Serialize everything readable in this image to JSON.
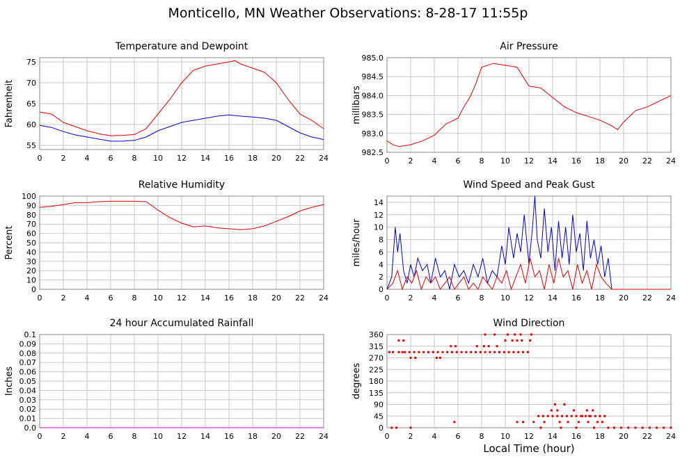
{
  "title": "Monticello, MN Weather Observations: 8-28-17 11:55p",
  "xlabel": "Local Time (hour)",
  "colors": {
    "red": "#e00000",
    "blue": "#0000d0",
    "magenta": "#cc00cc"
  },
  "chart_data": [
    {
      "type": "line",
      "title": "Temperature and Dewpoint",
      "ylabel": "Fahrenheit",
      "xlim": [
        0,
        24
      ],
      "ylim": [
        54,
        76
      ],
      "xticks": [
        "0",
        "2",
        "4",
        "6",
        "8",
        "10",
        "12",
        "14",
        "16",
        "18",
        "20",
        "22",
        "24"
      ],
      "yticks": [
        "55",
        "60",
        "65",
        "70",
        "75"
      ],
      "series": [
        {
          "color": "red",
          "x": [
            0,
            1,
            2,
            3,
            4,
            5,
            6,
            7,
            8,
            9,
            10,
            11,
            12,
            13,
            14,
            15,
            16,
            16.5,
            17,
            18,
            19,
            20,
            21,
            22,
            23,
            24
          ],
          "y": [
            63,
            62.5,
            60.5,
            59.5,
            58.5,
            57.8,
            57.3,
            57.4,
            57.6,
            59,
            62.5,
            66,
            70,
            73,
            74,
            74.5,
            75,
            75.3,
            74.5,
            73.5,
            72.5,
            70,
            66,
            62.5,
            61,
            59
          ]
        },
        {
          "color": "blue",
          "x": [
            0,
            1,
            2,
            3,
            4,
            5,
            6,
            7,
            8,
            9,
            10,
            11,
            12,
            13,
            14,
            15,
            16,
            17,
            18,
            19,
            20,
            21,
            22,
            23,
            24
          ],
          "y": [
            59.8,
            59.3,
            58.3,
            57.5,
            57,
            56.5,
            56,
            56,
            56.2,
            57,
            58.5,
            59.5,
            60.5,
            61,
            61.5,
            62,
            62.3,
            62,
            61.8,
            61.5,
            61,
            59.5,
            58,
            57,
            56.4
          ]
        }
      ]
    },
    {
      "type": "line",
      "title": "Air Pressure",
      "ylabel": "millibars",
      "xlim": [
        0,
        24
      ],
      "ylim": [
        982.5,
        985
      ],
      "xticks": [
        "0",
        "2",
        "4",
        "6",
        "8",
        "10",
        "12",
        "14",
        "16",
        "18",
        "20",
        "22",
        "24"
      ],
      "yticks": [
        "982.5",
        "983.0",
        "983.5",
        "984.0",
        "984.5",
        "985.0"
      ],
      "series": [
        {
          "color": "red",
          "x": [
            0,
            0.5,
            1,
            2,
            3,
            4,
            5,
            6,
            6.5,
            7,
            7.5,
            8,
            9,
            10,
            11,
            11.5,
            12,
            13,
            14,
            15,
            16,
            17,
            18,
            19,
            19.5,
            20,
            21,
            22,
            23,
            24
          ],
          "y": [
            982.8,
            982.7,
            982.65,
            982.7,
            982.8,
            982.95,
            983.25,
            983.4,
            983.7,
            983.95,
            984.3,
            984.75,
            984.85,
            984.8,
            984.75,
            984.5,
            984.25,
            984.2,
            983.95,
            983.7,
            983.55,
            983.45,
            983.35,
            983.2,
            983.1,
            983.3,
            983.6,
            983.7,
            983.85,
            984.0
          ]
        }
      ]
    },
    {
      "type": "line",
      "title": "Relative Humidity",
      "ylabel": "Percent",
      "xlim": [
        0,
        24
      ],
      "ylim": [
        0,
        100
      ],
      "xticks": [
        "0",
        "2",
        "4",
        "6",
        "8",
        "10",
        "12",
        "14",
        "16",
        "18",
        "20",
        "22",
        "24"
      ],
      "yticks": [
        "0",
        "10",
        "20",
        "30",
        "40",
        "50",
        "60",
        "70",
        "80",
        "90",
        "100"
      ],
      "series": [
        {
          "color": "red",
          "x": [
            0,
            1,
            2,
            3,
            4,
            5,
            6,
            7,
            8,
            9,
            10,
            11,
            12,
            13,
            14,
            15,
            16,
            17,
            18,
            19,
            20,
            21,
            22,
            23,
            24
          ],
          "y": [
            88,
            89,
            91,
            93,
            93,
            94,
            94.5,
            94.5,
            94.5,
            94,
            85,
            77,
            71,
            67,
            68,
            66,
            65,
            64,
            65,
            68,
            73,
            78,
            84,
            88,
            91
          ]
        }
      ]
    },
    {
      "type": "line",
      "title": "Wind Speed and Peak Gust",
      "ylabel": "miles/hour",
      "xlim": [
        0,
        24
      ],
      "ylim": [
        0,
        15
      ],
      "xticks": [
        "0",
        "2",
        "4",
        "6",
        "8",
        "10",
        "12",
        "14",
        "16",
        "18",
        "20",
        "22",
        "24"
      ],
      "yticks": [
        "0",
        "2",
        "4",
        "6",
        "8",
        "10",
        "12",
        "14"
      ],
      "series": [
        {
          "color": "blue",
          "x": [
            0,
            0.4,
            0.7,
            0.9,
            1.1,
            1.4,
            1.7,
            2.0,
            2.3,
            2.6,
            3.0,
            3.4,
            3.7,
            4.1,
            4.5,
            4.9,
            5.3,
            5.7,
            6.1,
            6.5,
            6.9,
            7.3,
            7.7,
            8.1,
            8.5,
            8.9,
            9.3,
            9.7,
            10.0,
            10.3,
            10.7,
            11.0,
            11.3,
            11.6,
            12.0,
            12.3,
            12.5,
            12.7,
            13.0,
            13.3,
            13.6,
            13.9,
            14.2,
            14.5,
            14.8,
            15.1,
            15.4,
            15.7,
            16.0,
            16.3,
            16.6,
            16.9,
            17.2,
            17.5,
            17.8,
            18.1,
            18.4,
            18.7,
            19,
            24
          ],
          "y": [
            0,
            2,
            10,
            6,
            9,
            3,
            1,
            4,
            2,
            5,
            3,
            4,
            1,
            5,
            2,
            3,
            0,
            4,
            2,
            3,
            1,
            4,
            2,
            5,
            1,
            3,
            2,
            7,
            4,
            10,
            5,
            9,
            6,
            12,
            4,
            10,
            15,
            8,
            5,
            13,
            6,
            10,
            3,
            11,
            5,
            10,
            4,
            12,
            6,
            9,
            3,
            11,
            5,
            8,
            4,
            7,
            2,
            5,
            0,
            0
          ]
        },
        {
          "color": "red",
          "x": [
            0,
            0.5,
            0.9,
            1.3,
            1.7,
            2.1,
            2.5,
            2.9,
            3.3,
            3.7,
            4.1,
            4.5,
            4.9,
            5.3,
            5.7,
            6.1,
            6.5,
            6.9,
            7.3,
            7.7,
            8.1,
            8.5,
            8.9,
            9.3,
            9.7,
            10.1,
            10.5,
            10.9,
            11.3,
            11.7,
            12.1,
            12.5,
            12.9,
            13.3,
            13.7,
            14.1,
            14.5,
            14.9,
            15.3,
            15.7,
            16.1,
            16.5,
            16.9,
            17.3,
            17.7,
            18.1,
            18.5,
            19,
            24
          ],
          "y": [
            0,
            1,
            3,
            0,
            2,
            1,
            3,
            0,
            2,
            1,
            2,
            0,
            1,
            2,
            0,
            1,
            2,
            0,
            1,
            0,
            2,
            1,
            0,
            2,
            1,
            3,
            0,
            2,
            4,
            1,
            5,
            2,
            3,
            0,
            4,
            1,
            5,
            2,
            3,
            0,
            4,
            1,
            3,
            0,
            4,
            2,
            1,
            0,
            0
          ]
        }
      ]
    },
    {
      "type": "line",
      "title": "24 hour Accumulated Rainfall",
      "ylabel": "Inches",
      "xlim": [
        0,
        24
      ],
      "ylim": [
        0,
        0.1
      ],
      "xticks": [
        "0",
        "2",
        "4",
        "6",
        "8",
        "10",
        "12",
        "14",
        "16",
        "18",
        "20",
        "22",
        "24"
      ],
      "yticks": [
        "0.0",
        "0.01",
        "0.02",
        "0.03",
        "0.04",
        "0.05",
        "0.06",
        "0.07",
        "0.08",
        "0.09",
        "0.1"
      ],
      "series": [
        {
          "color": "magenta",
          "x": [
            0,
            24
          ],
          "y": [
            0,
            0
          ]
        }
      ]
    },
    {
      "type": "scatter",
      "title": "Wind Direction",
      "ylabel": "degrees",
      "xlim": [
        0,
        24
      ],
      "ylim": [
        0,
        360
      ],
      "xticks": [
        "0",
        "2",
        "4",
        "6",
        "8",
        "10",
        "12",
        "14",
        "16",
        "18",
        "20",
        "22",
        "24"
      ],
      "yticks": [
        "0",
        "45",
        "90",
        "135",
        "180",
        "225",
        "270",
        "315",
        "360"
      ],
      "series": [
        {
          "color": "red",
          "x": [
            0.2,
            0.5,
            1.0,
            1.3,
            1.5,
            1.9,
            2.3,
            2.7,
            3.1,
            3.5,
            3.9,
            4.3,
            4.7,
            5.1,
            5.5,
            5.9,
            6.3,
            6.7,
            7.1,
            7.5,
            7.9,
            8.3,
            8.7,
            9.1,
            9.5,
            9.9,
            10.3,
            10.7,
            11.1,
            11.5,
            11.9,
            1.0,
            1.4,
            2.0,
            2.4,
            4.2,
            4.5,
            5.4,
            5.8,
            7.6,
            8.2,
            8.6,
            9.3,
            10.0,
            10.6,
            11.0,
            11.4,
            12.1,
            8.3,
            9.1,
            10.2,
            10.8,
            11.3,
            12.2,
            0.4,
            0.8,
            2.0,
            5.7,
            11.0,
            11.5,
            12.8,
            13.2,
            13.6,
            14.0,
            14.4,
            14.8,
            15.2,
            15.6,
            16.0,
            16.4,
            16.8,
            17.2,
            17.6,
            18.0,
            18.4,
            12.4,
            13.3,
            14.6,
            15.3,
            16.2,
            17.0,
            17.8,
            18.2,
            13.9,
            14.4,
            15.8,
            16.9,
            17.4,
            14.2,
            15.0,
            16.5,
            17.1,
            13.0,
            14.7,
            16.0,
            17.5,
            18.7,
            19.2,
            19.8,
            20.4,
            21.0,
            21.6,
            22.2,
            22.8,
            23.4,
            24.0
          ],
          "y": [
            292,
            292,
            292,
            292,
            292,
            292,
            292,
            292,
            292,
            292,
            292,
            292,
            292,
            292,
            292,
            292,
            292,
            292,
            292,
            292,
            292,
            292,
            292,
            292,
            292,
            292,
            292,
            292,
            292,
            292,
            292,
            337,
            337,
            270,
            270,
            270,
            270,
            315,
            315,
            315,
            315,
            315,
            315,
            337,
            337,
            337,
            337,
            337,
            360,
            360,
            360,
            360,
            360,
            360,
            0,
            0,
            0,
            22,
            22,
            22,
            45,
            45,
            45,
            45,
            45,
            45,
            45,
            45,
            45,
            45,
            45,
            45,
            45,
            45,
            45,
            22,
            22,
            22,
            22,
            22,
            22,
            22,
            22,
            67,
            67,
            67,
            67,
            67,
            90,
            90,
            45,
            45,
            0,
            0,
            0,
            0,
            0,
            0,
            0,
            0,
            0,
            0,
            0,
            0,
            0,
            0
          ]
        }
      ]
    }
  ]
}
